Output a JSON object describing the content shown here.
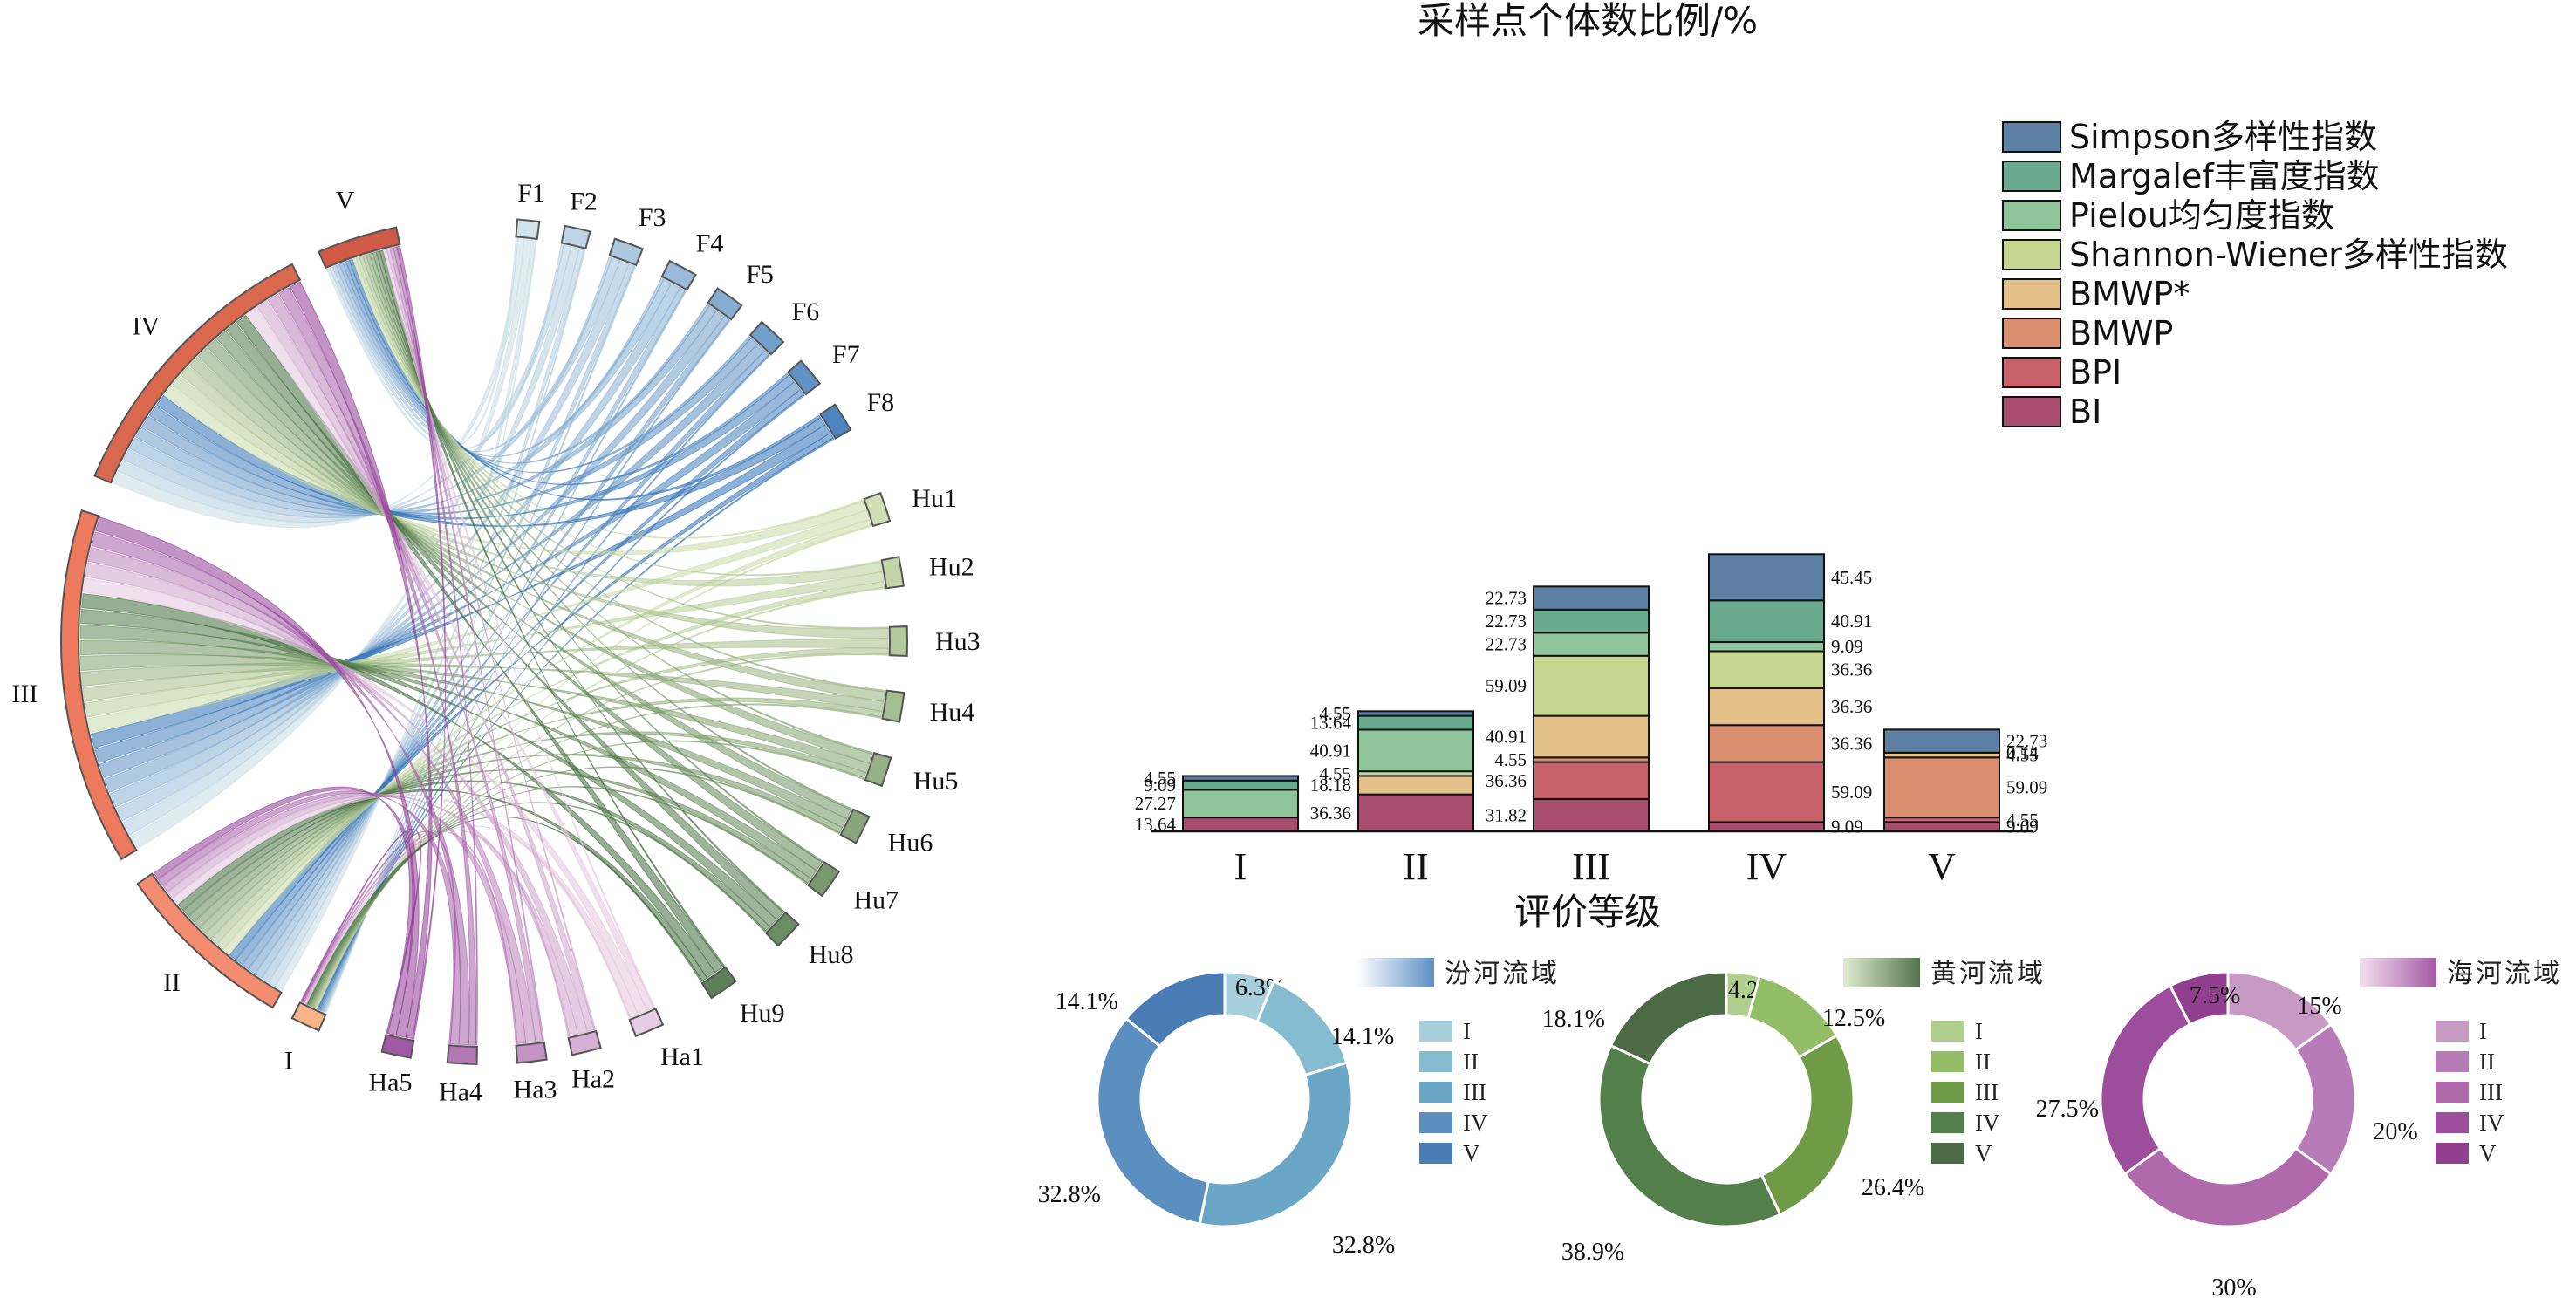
{
  "bar_title": "采样点个体数比例/%",
  "bar_xlabel": "评价等级",
  "chart_data": [
    {
      "type": "chord",
      "sources": [
        "F1",
        "F2",
        "F3",
        "F4",
        "F5",
        "F6",
        "F7",
        "F8",
        "Hu1",
        "Hu2",
        "Hu3",
        "Hu4",
        "Hu5",
        "Hu6",
        "Hu7",
        "Hu8",
        "Hu9",
        "Ha1",
        "Ha2",
        "Ha3",
        "Ha4",
        "Ha5"
      ],
      "grades": [
        "V",
        "IV",
        "III",
        "II",
        "I"
      ],
      "grade_colors": {
        "V": "#cf5a45",
        "IV": "#d9684f",
        "III": "#ee7a5e",
        "II": "#f48c70",
        "I": "#f6b487"
      },
      "basin_colors": {
        "F": "#5d8fc4",
        "Hu": "#6a9a4f",
        "Ha": "#a05aa8"
      }
    },
    {
      "type": "bar",
      "stacked": true,
      "categories": [
        "I",
        "II",
        "III",
        "IV",
        "V"
      ],
      "ylim": [
        0,
        260
      ],
      "series": [
        {
          "name": "BI",
          "color": "#a84d6e",
          "values": [
            13.64,
            36.36,
            31.82,
            9.09,
            9.09
          ]
        },
        {
          "name": "BPI",
          "color": "#c9616b",
          "values": [
            0,
            0,
            36.36,
            59.09,
            4.55
          ]
        },
        {
          "name": "BMWP",
          "color": "#d98e70",
          "values": [
            0,
            0,
            4.55,
            36.36,
            59.09
          ]
        },
        {
          "name": "BMWP*",
          "color": "#e5c18a",
          "values": [
            0,
            18.18,
            40.91,
            36.36,
            4.55
          ]
        },
        {
          "name": "Shannon-Wiener多样性指数",
          "color": "#c6d590",
          "values": [
            0,
            4.55,
            59.09,
            36.36,
            0
          ]
        },
        {
          "name": "Pielou均匀度指数",
          "color": "#90c49a",
          "values": [
            27.27,
            40.91,
            22.73,
            9.09,
            0
          ]
        },
        {
          "name": "Margalef丰富度指数",
          "color": "#6aab8f",
          "values": [
            9.09,
            13.64,
            22.73,
            40.91,
            0.14
          ]
        },
        {
          "name": "Simpson多样性指数",
          "color": "#5d7fa3",
          "values": [
            4.55,
            4.55,
            22.73,
            45.45,
            22.73
          ]
        }
      ]
    },
    {
      "type": "pie",
      "name": "汾河流域",
      "labels": [
        "I",
        "II",
        "III",
        "IV",
        "V"
      ],
      "values": [
        6.3,
        14.1,
        32.8,
        32.8,
        14.1
      ],
      "value_labels": [
        "6.3%",
        "14.1%",
        "32.8%",
        "32.8%",
        "14.1%"
      ],
      "colors": [
        "#a7d0dc",
        "#86bccf",
        "#6aa7c6",
        "#5b8fbf",
        "#4a7db5"
      ],
      "grad": [
        "#ffffff",
        "#5d8fc4"
      ]
    },
    {
      "type": "pie",
      "name": "黄河流域",
      "labels": [
        "I",
        "II",
        "III",
        "IV",
        "V"
      ],
      "values": [
        4.2,
        12.5,
        26.4,
        38.9,
        18.1
      ],
      "value_labels": [
        "4.2%",
        "12.5%",
        "26.4%",
        "38.9%",
        "18.1%"
      ],
      "colors": [
        "#b0cf8e",
        "#93bd66",
        "#6f9b46",
        "#537f4a",
        "#4b6a45"
      ],
      "grad": [
        "#dfeccf",
        "#55734f"
      ]
    },
    {
      "type": "pie",
      "name": "海河流域",
      "labels": [
        "I",
        "II",
        "III",
        "IV",
        "V"
      ],
      "values": [
        15,
        20,
        30,
        27.5,
        7.5
      ],
      "value_labels": [
        "15%",
        "20%",
        "30%",
        "27.5%",
        "7.5%"
      ],
      "colors": [
        "#c79ac4",
        "#b77cb7",
        "#b06aac",
        "#9c4e9d",
        "#923f8f"
      ],
      "grad": [
        "#f3dff0",
        "#a35aa3"
      ]
    }
  ]
}
